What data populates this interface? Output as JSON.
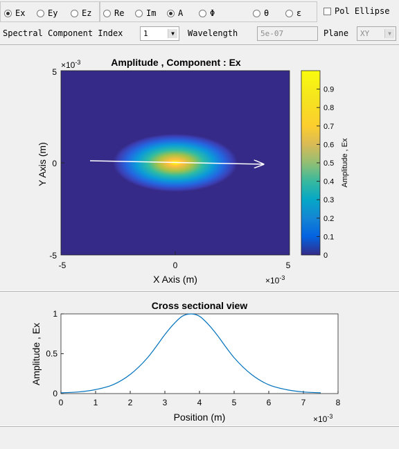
{
  "component_radios": [
    {
      "label": "Ex",
      "selected": true
    },
    {
      "label": "Ey",
      "selected": false
    },
    {
      "label": "Ez",
      "selected": false
    }
  ],
  "part_radios": [
    {
      "label": "Re",
      "selected": false
    },
    {
      "label": "Im",
      "selected": false
    },
    {
      "label": "A",
      "selected": true
    },
    {
      "label": "Φ",
      "selected": false
    },
    {
      "label": "θ",
      "selected": false
    },
    {
      "label": "ε",
      "selected": false
    }
  ],
  "pol_ellipse": {
    "label": "Pol Ellipse",
    "checked": false
  },
  "spectral": {
    "label": "Spectral Component Index",
    "value": "1"
  },
  "wavelength": {
    "label": "Wavelength",
    "value": "5e-07"
  },
  "plane": {
    "label": "Plane",
    "value": "XY"
  },
  "main_plot": {
    "title": "Amplitude , Component : Ex",
    "xlabel": "X Axis (m)",
    "ylabel": "Y Axis (m)",
    "x_ticks": [
      "-5",
      "0",
      "5"
    ],
    "y_ticks": [
      "5",
      "0",
      "-5"
    ],
    "x_exponent": "×10",
    "x_exponent_power": "-3",
    "y_exponent": "×10",
    "y_exponent_power": "-3",
    "background_color": "#352a87",
    "colorbar_label": "Amplitude ,  Ex",
    "colorbar_ticks": [
      "0.9",
      "0.8",
      "0.7",
      "0.6",
      "0.5",
      "0.4",
      "0.3",
      "0.2",
      "0.1",
      "0"
    ]
  },
  "chart_data": {
    "type": "line",
    "title": "Cross sectional view",
    "xlabel": "Position (m)",
    "ylabel": "Amplitude ,  Ex",
    "x_exponent": "×10",
    "x_exponent_power": "-3",
    "xlim": [
      0,
      8
    ],
    "ylim": [
      0,
      1
    ],
    "x_ticks": [
      "0",
      "1",
      "2",
      "3",
      "4",
      "5",
      "6",
      "7",
      "8"
    ],
    "y_ticks": [
      "1",
      "0.5",
      "0"
    ],
    "series": [
      {
        "color": "#0072bd",
        "x": [
          0,
          0.5,
          1.0,
          1.5,
          2.0,
          2.5,
          3.0,
          3.25,
          3.5,
          3.75,
          4.0,
          4.25,
          4.5,
          5.0,
          5.5,
          6.0,
          6.5,
          7.0,
          7.5
        ],
        "y": [
          0.01,
          0.02,
          0.05,
          0.11,
          0.24,
          0.45,
          0.74,
          0.87,
          0.97,
          1.0,
          0.97,
          0.87,
          0.74,
          0.45,
          0.24,
          0.11,
          0.05,
          0.02,
          0.01
        ]
      }
    ]
  }
}
